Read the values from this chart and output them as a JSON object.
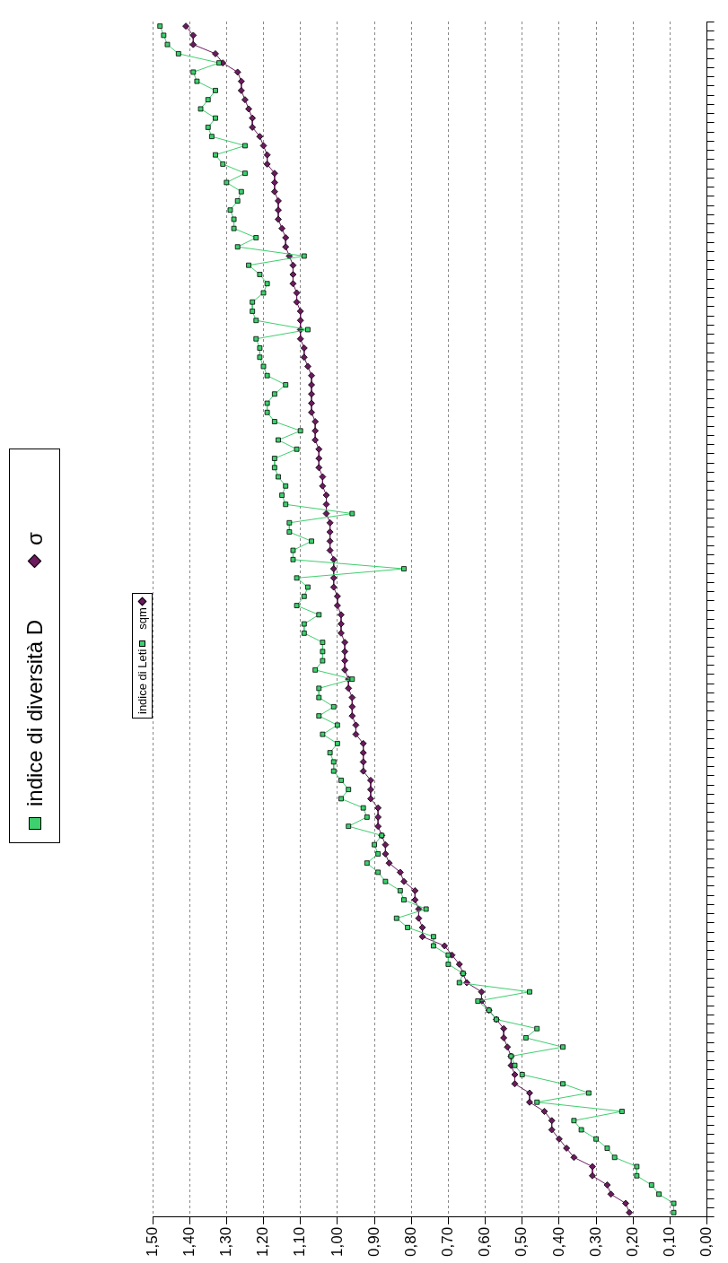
{
  "chart_data": {
    "type": "line",
    "orientation": "horizontal",
    "categories": [
      null,
      null,
      null,
      null,
      null,
      null,
      null,
      null,
      null,
      null,
      null,
      null,
      null,
      null,
      null,
      null,
      null,
      null,
      null,
      null,
      null,
      null,
      null,
      null,
      null,
      null,
      null,
      null,
      null,
      null,
      null,
      null,
      null,
      null,
      null,
      null,
      null,
      null,
      null,
      null,
      null,
      null,
      null,
      null,
      null,
      null,
      null,
      null,
      null,
      null,
      null,
      null,
      null,
      null,
      null,
      null,
      null,
      null,
      null,
      null,
      null,
      null,
      null,
      null,
      null,
      null,
      null,
      null,
      null,
      null,
      null,
      null,
      null,
      null,
      null,
      null,
      null,
      null,
      null,
      null,
      null,
      null,
      null,
      null,
      null,
      null,
      null,
      null,
      null,
      null,
      null,
      null,
      null,
      null,
      null,
      null,
      null,
      null,
      null,
      null,
      null,
      null,
      null,
      null,
      null,
      null,
      null,
      null,
      null,
      null,
      null,
      null,
      null,
      null,
      null,
      null,
      null,
      null,
      null,
      null,
      null,
      null,
      null,
      null,
      null,
      null,
      null,
      null,
      null,
      null
    ],
    "series": [
      {
        "name": "indice di Leti",
        "color": "#3ecf6e",
        "marker": "square",
        "values": [
          1.48,
          1.47,
          1.46,
          1.43,
          1.32,
          1.39,
          1.38,
          1.33,
          1.35,
          1.37,
          1.33,
          1.35,
          1.34,
          1.25,
          1.33,
          1.31,
          1.25,
          1.3,
          1.26,
          1.27,
          1.29,
          1.28,
          1.28,
          1.22,
          1.27,
          1.09,
          1.24,
          1.21,
          1.19,
          1.2,
          1.23,
          1.23,
          1.22,
          1.08,
          1.22,
          1.21,
          1.21,
          1.2,
          1.19,
          1.14,
          1.17,
          1.19,
          1.19,
          1.17,
          1.1,
          1.16,
          1.11,
          1.17,
          1.17,
          1.16,
          1.14,
          1.15,
          1.14,
          0.96,
          1.13,
          1.13,
          1.07,
          1.12,
          1.12,
          0.82,
          1.11,
          1.08,
          1.09,
          1.11,
          1.05,
          1.09,
          1.09,
          1.04,
          1.04,
          1.04,
          1.06,
          0.96,
          1.05,
          1.05,
          1.01,
          1.05,
          1.0,
          1.04,
          1.0,
          1.02,
          1.01,
          1.01,
          0.99,
          0.97,
          0.99,
          0.93,
          0.92,
          0.97,
          0.88,
          0.9,
          0.89,
          0.92,
          0.89,
          0.87,
          0.83,
          0.82,
          0.76,
          0.84,
          0.81,
          0.74,
          0.74,
          0.7,
          0.7,
          0.66,
          0.67,
          0.48,
          0.62,
          0.59,
          0.57,
          0.46,
          0.49,
          0.39,
          0.53,
          0.52,
          0.5,
          0.39,
          0.32,
          0.46,
          0.23,
          0.36,
          0.34,
          0.3,
          0.27,
          0.25,
          0.19,
          0.19,
          0.15,
          0.13,
          0.09,
          0.09
        ]
      },
      {
        "name": "sqm",
        "color": "#6b1a5e",
        "marker": "diamond",
        "values": [
          1.41,
          1.39,
          1.39,
          1.33,
          1.31,
          1.27,
          1.26,
          1.26,
          1.25,
          1.24,
          1.23,
          1.23,
          1.21,
          1.2,
          1.19,
          1.19,
          1.17,
          1.17,
          1.17,
          1.16,
          1.16,
          1.16,
          1.15,
          1.14,
          1.14,
          1.13,
          1.12,
          1.12,
          1.12,
          1.11,
          1.11,
          1.1,
          1.1,
          1.1,
          1.1,
          1.09,
          1.09,
          1.08,
          1.07,
          1.07,
          1.07,
          1.07,
          1.07,
          1.06,
          1.06,
          1.06,
          1.05,
          1.05,
          1.05,
          1.04,
          1.04,
          1.03,
          1.03,
          1.03,
          1.02,
          1.02,
          1.02,
          1.02,
          1.01,
          1.01,
          1.01,
          1.01,
          1.0,
          1.0,
          0.99,
          0.99,
          0.99,
          0.98,
          0.98,
          0.98,
          0.98,
          0.97,
          0.97,
          0.96,
          0.96,
          0.96,
          0.95,
          0.95,
          0.93,
          0.93,
          0.93,
          0.93,
          0.91,
          0.91,
          0.91,
          0.89,
          0.89,
          0.89,
          0.88,
          0.87,
          0.87,
          0.86,
          0.83,
          0.82,
          0.79,
          0.79,
          0.78,
          0.78,
          0.77,
          0.77,
          0.71,
          0.69,
          0.67,
          0.66,
          0.65,
          0.61,
          0.61,
          0.59,
          0.57,
          0.55,
          0.55,
          0.54,
          0.53,
          0.53,
          0.52,
          0.52,
          0.48,
          0.48,
          0.44,
          0.42,
          0.42,
          0.4,
          0.38,
          0.36,
          0.31,
          0.31,
          0.27,
          0.26,
          0.22,
          0.21
        ]
      }
    ],
    "xlim": [
      1.5,
      0
    ],
    "xticks": [
      {
        "value": 1.5,
        "label": "1,50"
      },
      {
        "value": 1.4,
        "label": "1,40"
      },
      {
        "value": 1.3,
        "label": "1,30"
      },
      {
        "value": 1.2,
        "label": "1,20"
      },
      {
        "value": 1.1,
        "label": "1,10"
      },
      {
        "value": 1.0,
        "label": "1,00"
      },
      {
        "value": 0.9,
        "label": "0,90"
      },
      {
        "value": 0.8,
        "label": "0,80"
      },
      {
        "value": 0.7,
        "label": "0,70"
      },
      {
        "value": 0.6,
        "label": "0,60"
      },
      {
        "value": 0.5,
        "label": "0,50"
      },
      {
        "value": 0.4,
        "label": "0,40"
      },
      {
        "value": 0.3,
        "label": "0,30"
      },
      {
        "value": 0.2,
        "label": "0,20"
      },
      {
        "value": 0.1,
        "label": "0,10"
      },
      {
        "value": 0,
        "label": "0,00"
      }
    ],
    "grid": "x",
    "tick_labels": "x",
    "legend": "left",
    "annotations": [
      "indice di diversità D",
      "σ"
    ]
  }
}
